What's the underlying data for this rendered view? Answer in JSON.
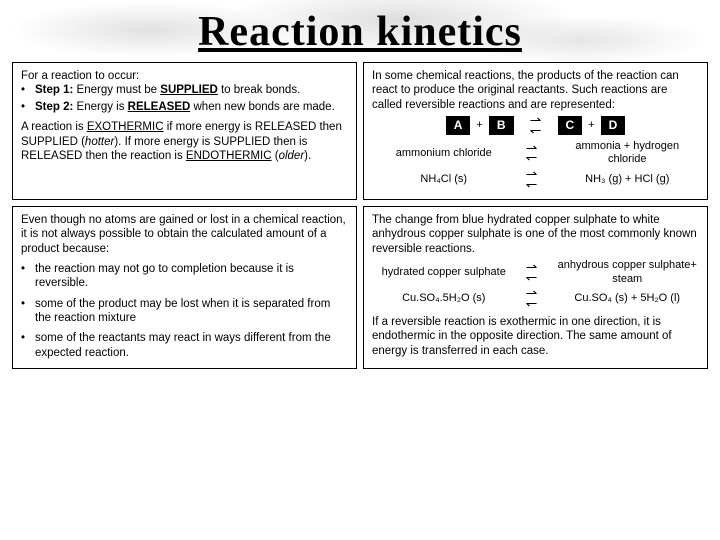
{
  "title": "Reaction kinetics",
  "box1": {
    "intro": "For a reaction to occur:",
    "step1_label": "Step 1:",
    "step1_text": " Energy must be ",
    "step1_key": "SUPPLIED",
    "step1_tail": " to break bonds.",
    "step2_label": "Step 2:",
    "step2_text": " Energy is ",
    "step2_key": "RELEASED",
    "step2_tail": " when new bonds are made.",
    "para_a": "A reaction is ",
    "exo": "EXOTHERMIC",
    "para_b": " if more energy is RELEASED then SUPPLIED (",
    "hotter": "hotter",
    "para_c": "). If more energy is SUPPLIED then is RELEASED then the reaction is ",
    "endo": "ENDOTHERMIC",
    "para_d": " (",
    "older": "older",
    "para_e": ")."
  },
  "box2": {
    "intro": "In some chemical reactions, the products of the reaction can react to produce the original reactants. Such reactions are called reversible reactions and are represented:",
    "A": "A",
    "B": "B",
    "C": "C",
    "D": "D",
    "plus": "+",
    "r1_left": "ammonium chloride",
    "r1_right_a": "ammonia",
    "r1_right_plus": " + ",
    "r1_right_b": "hydrogen chloride",
    "r2_left": "NH₄Cl (s)",
    "r2_right": "NH₃ (g) + HCl (g)"
  },
  "box3": {
    "intro": "Even though no atoms are gained or lost in a chemical reaction, it is not always possible to obtain the calculated amount of a product because:",
    "li1": "the reaction may not go to completion because it is reversible.",
    "li2": "some of the product may be lost when it is separated from the reaction mixture",
    "li3": "some of the reactants may react in ways different from the expected reaction."
  },
  "box4": {
    "intro": "The change from blue hydrated copper sulphate to white anhydrous copper sulphate is one of the most commonly known reversible reactions.",
    "r1_left": "hydrated copper sulphate",
    "r1_right": "anhydrous copper sulphate",
    "r1_plus_steam": "+ steam",
    "r2_left": "Cu.SO₄.5H₂O (s)",
    "r2_right": "Cu.SO₄ (s) + 5H₂O (l)",
    "outro": "If a reversible reaction is exothermic in one direction, it is endothermic in the opposite direction. The same amount of energy is transferred in each case."
  }
}
